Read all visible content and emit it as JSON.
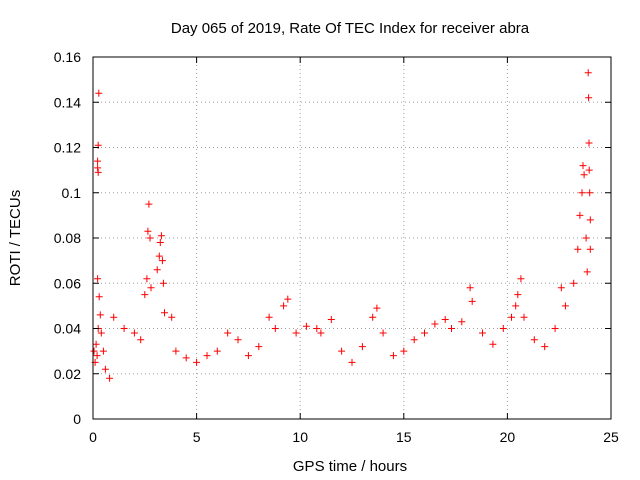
{
  "chart_data": {
    "type": "scatter",
    "title": "Day 065 of 2019, Rate Of TEC Index for receiver abra",
    "xlabel": "GPS time / hours",
    "ylabel": "ROTI / TECUs",
    "xlim": [
      0,
      25
    ],
    "ylim": [
      0,
      0.16
    ],
    "xticks": [
      0,
      5,
      10,
      15,
      20,
      25
    ],
    "xtick_labels": [
      "0",
      "5",
      "10",
      "15",
      "20",
      "25"
    ],
    "yticks": [
      0,
      0.02,
      0.04,
      0.06,
      0.08,
      0.1,
      0.12,
      0.14,
      0.16
    ],
    "ytick_labels": [
      "0",
      "0.02",
      "0.04",
      "0.06",
      "0.08",
      "0.1",
      "0.12",
      "0.14",
      "0.16"
    ],
    "grid": true,
    "marker": "+",
    "color": "#ff0000",
    "series": [
      {
        "name": "ROTI",
        "points": [
          [
            0.05,
            0.03
          ],
          [
            0.1,
            0.025
          ],
          [
            0.15,
            0.033
          ],
          [
            0.2,
            0.028
          ],
          [
            0.25,
            0.04
          ],
          [
            0.28,
            0.144
          ],
          [
            0.25,
            0.121
          ],
          [
            0.22,
            0.114
          ],
          [
            0.22,
            0.111
          ],
          [
            0.25,
            0.109
          ],
          [
            0.22,
            0.062
          ],
          [
            0.3,
            0.054
          ],
          [
            0.35,
            0.046
          ],
          [
            0.4,
            0.038
          ],
          [
            0.5,
            0.03
          ],
          [
            0.6,
            0.022
          ],
          [
            0.8,
            0.018
          ],
          [
            1.0,
            0.045
          ],
          [
            1.5,
            0.04
          ],
          [
            2.0,
            0.038
          ],
          [
            2.3,
            0.035
          ],
          [
            2.5,
            0.055
          ],
          [
            2.6,
            0.062
          ],
          [
            2.65,
            0.083
          ],
          [
            2.7,
            0.095
          ],
          [
            2.75,
            0.08
          ],
          [
            2.8,
            0.058
          ],
          [
            3.1,
            0.066
          ],
          [
            3.2,
            0.072
          ],
          [
            3.25,
            0.078
          ],
          [
            3.3,
            0.081
          ],
          [
            3.35,
            0.07
          ],
          [
            3.4,
            0.06
          ],
          [
            3.45,
            0.047
          ],
          [
            3.8,
            0.045
          ],
          [
            4.0,
            0.03
          ],
          [
            4.5,
            0.027
          ],
          [
            5.0,
            0.025
          ],
          [
            5.5,
            0.028
          ],
          [
            6.0,
            0.03
          ],
          [
            6.5,
            0.038
          ],
          [
            7.0,
            0.035
          ],
          [
            7.5,
            0.028
          ],
          [
            8.0,
            0.032
          ],
          [
            8.5,
            0.045
          ],
          [
            8.8,
            0.04
          ],
          [
            9.2,
            0.05
          ],
          [
            9.4,
            0.053
          ],
          [
            9.8,
            0.038
          ],
          [
            10.3,
            0.041
          ],
          [
            10.8,
            0.04
          ],
          [
            11.0,
            0.038
          ],
          [
            11.5,
            0.044
          ],
          [
            12.0,
            0.03
          ],
          [
            12.5,
            0.025
          ],
          [
            13.0,
            0.032
          ],
          [
            13.5,
            0.045
          ],
          [
            13.7,
            0.049
          ],
          [
            14.0,
            0.038
          ],
          [
            14.5,
            0.028
          ],
          [
            15.0,
            0.03
          ],
          [
            15.5,
            0.035
          ],
          [
            16.0,
            0.038
          ],
          [
            16.5,
            0.042
          ],
          [
            17.0,
            0.044
          ],
          [
            17.3,
            0.04
          ],
          [
            17.8,
            0.043
          ],
          [
            18.2,
            0.058
          ],
          [
            18.3,
            0.052
          ],
          [
            18.8,
            0.038
          ],
          [
            19.3,
            0.033
          ],
          [
            19.8,
            0.04
          ],
          [
            20.2,
            0.045
          ],
          [
            20.4,
            0.05
          ],
          [
            20.5,
            0.055
          ],
          [
            20.65,
            0.062
          ],
          [
            20.8,
            0.045
          ],
          [
            21.3,
            0.035
          ],
          [
            21.8,
            0.032
          ],
          [
            22.3,
            0.04
          ],
          [
            22.6,
            0.058
          ],
          [
            22.8,
            0.05
          ],
          [
            23.2,
            0.06
          ],
          [
            23.4,
            0.075
          ],
          [
            23.5,
            0.09
          ],
          [
            23.6,
            0.1
          ],
          [
            23.65,
            0.112
          ],
          [
            23.7,
            0.108
          ],
          [
            23.8,
            0.08
          ],
          [
            23.85,
            0.065
          ],
          [
            23.9,
            0.153
          ],
          [
            23.92,
            0.142
          ],
          [
            23.94,
            0.122
          ],
          [
            23.95,
            0.11
          ],
          [
            23.97,
            0.1
          ],
          [
            24.0,
            0.088
          ],
          [
            24.0,
            0.075
          ]
        ]
      }
    ]
  }
}
